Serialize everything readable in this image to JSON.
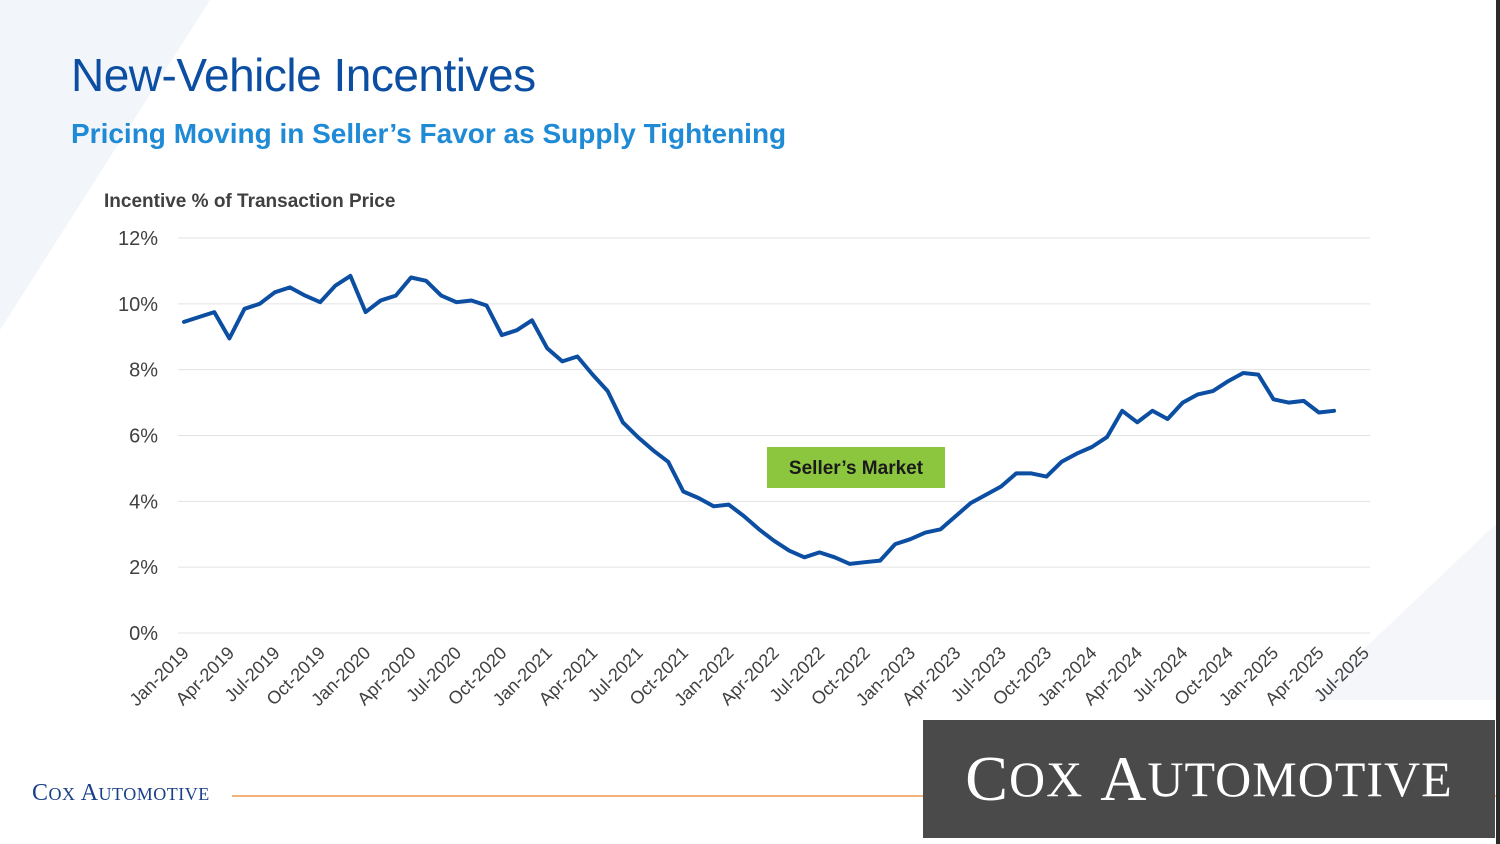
{
  "slide": {
    "title": "New-Vehicle Incentives",
    "subtitle": "Pricing Moving in Seller’s Favor as Supply Tightening",
    "footer_logo_big_c": "C",
    "footer_logo_ox": "OX",
    "footer_logo_big_a": "A",
    "footer_logo_utomotive": "UTOMOTIVE"
  },
  "watermark": {
    "big_c": "C",
    "ox": "OX",
    "big_a": "A",
    "utomotive": "UTOMOTIVE"
  },
  "colors": {
    "title": "#0b4ea2",
    "subtitle": "#1f8ad6",
    "line": "#0b4ea2",
    "annotation_bg": "#8cc63f",
    "gridline": "#e3e3e3",
    "footer_line": "#f2b27a"
  },
  "chart_data": {
    "type": "line",
    "ylabel": "Incentive % of Transaction Price",
    "ylim": [
      0,
      12
    ],
    "yticks": [
      "0%",
      "2%",
      "4%",
      "6%",
      "8%",
      "10%",
      "12%"
    ],
    "grid": true,
    "xtick_labels": [
      "Jan-2019",
      "Apr-2019",
      "Jul-2019",
      "Oct-2019",
      "Jan-2020",
      "Apr-2020",
      "Jul-2020",
      "Oct-2020",
      "Jan-2021",
      "Apr-2021",
      "Jul-2021",
      "Oct-2021",
      "Jan-2022",
      "Apr-2022",
      "Jul-2022",
      "Oct-2022",
      "Jan-2023",
      "Apr-2023",
      "Jul-2023",
      "Oct-2023",
      "Jan-2024",
      "Apr-2024",
      "Jul-2024",
      "Oct-2024",
      "Jan-2025",
      "Apr-2025",
      "Jul-2025"
    ],
    "annotation": "Seller’s Market",
    "series": [
      {
        "values": [
          9.45,
          9.6,
          9.75,
          8.95,
          9.85,
          10.0,
          10.35,
          10.5,
          10.25,
          10.05,
          10.55,
          10.85,
          9.75,
          10.1,
          10.25,
          10.8,
          10.7,
          10.25,
          10.05,
          10.1,
          9.95,
          9.05,
          9.2,
          9.5,
          8.65,
          8.25,
          8.4,
          7.85,
          7.35,
          6.4,
          5.95,
          5.55,
          5.2,
          4.3,
          4.1,
          3.85,
          3.9,
          3.55,
          3.15,
          2.8,
          2.5,
          2.3,
          2.45,
          2.3,
          2.1,
          2.15,
          2.2,
          2.7,
          2.85,
          3.05,
          3.15,
          3.55,
          3.95,
          4.2,
          4.45,
          4.85,
          4.85,
          4.75,
          5.2,
          5.45,
          5.65,
          5.95,
          6.75,
          6.4,
          6.75,
          6.5,
          7.0,
          7.25,
          7.35,
          7.65,
          7.9,
          7.85,
          7.1,
          7.0,
          7.05,
          6.7,
          6.75
        ]
      }
    ]
  }
}
